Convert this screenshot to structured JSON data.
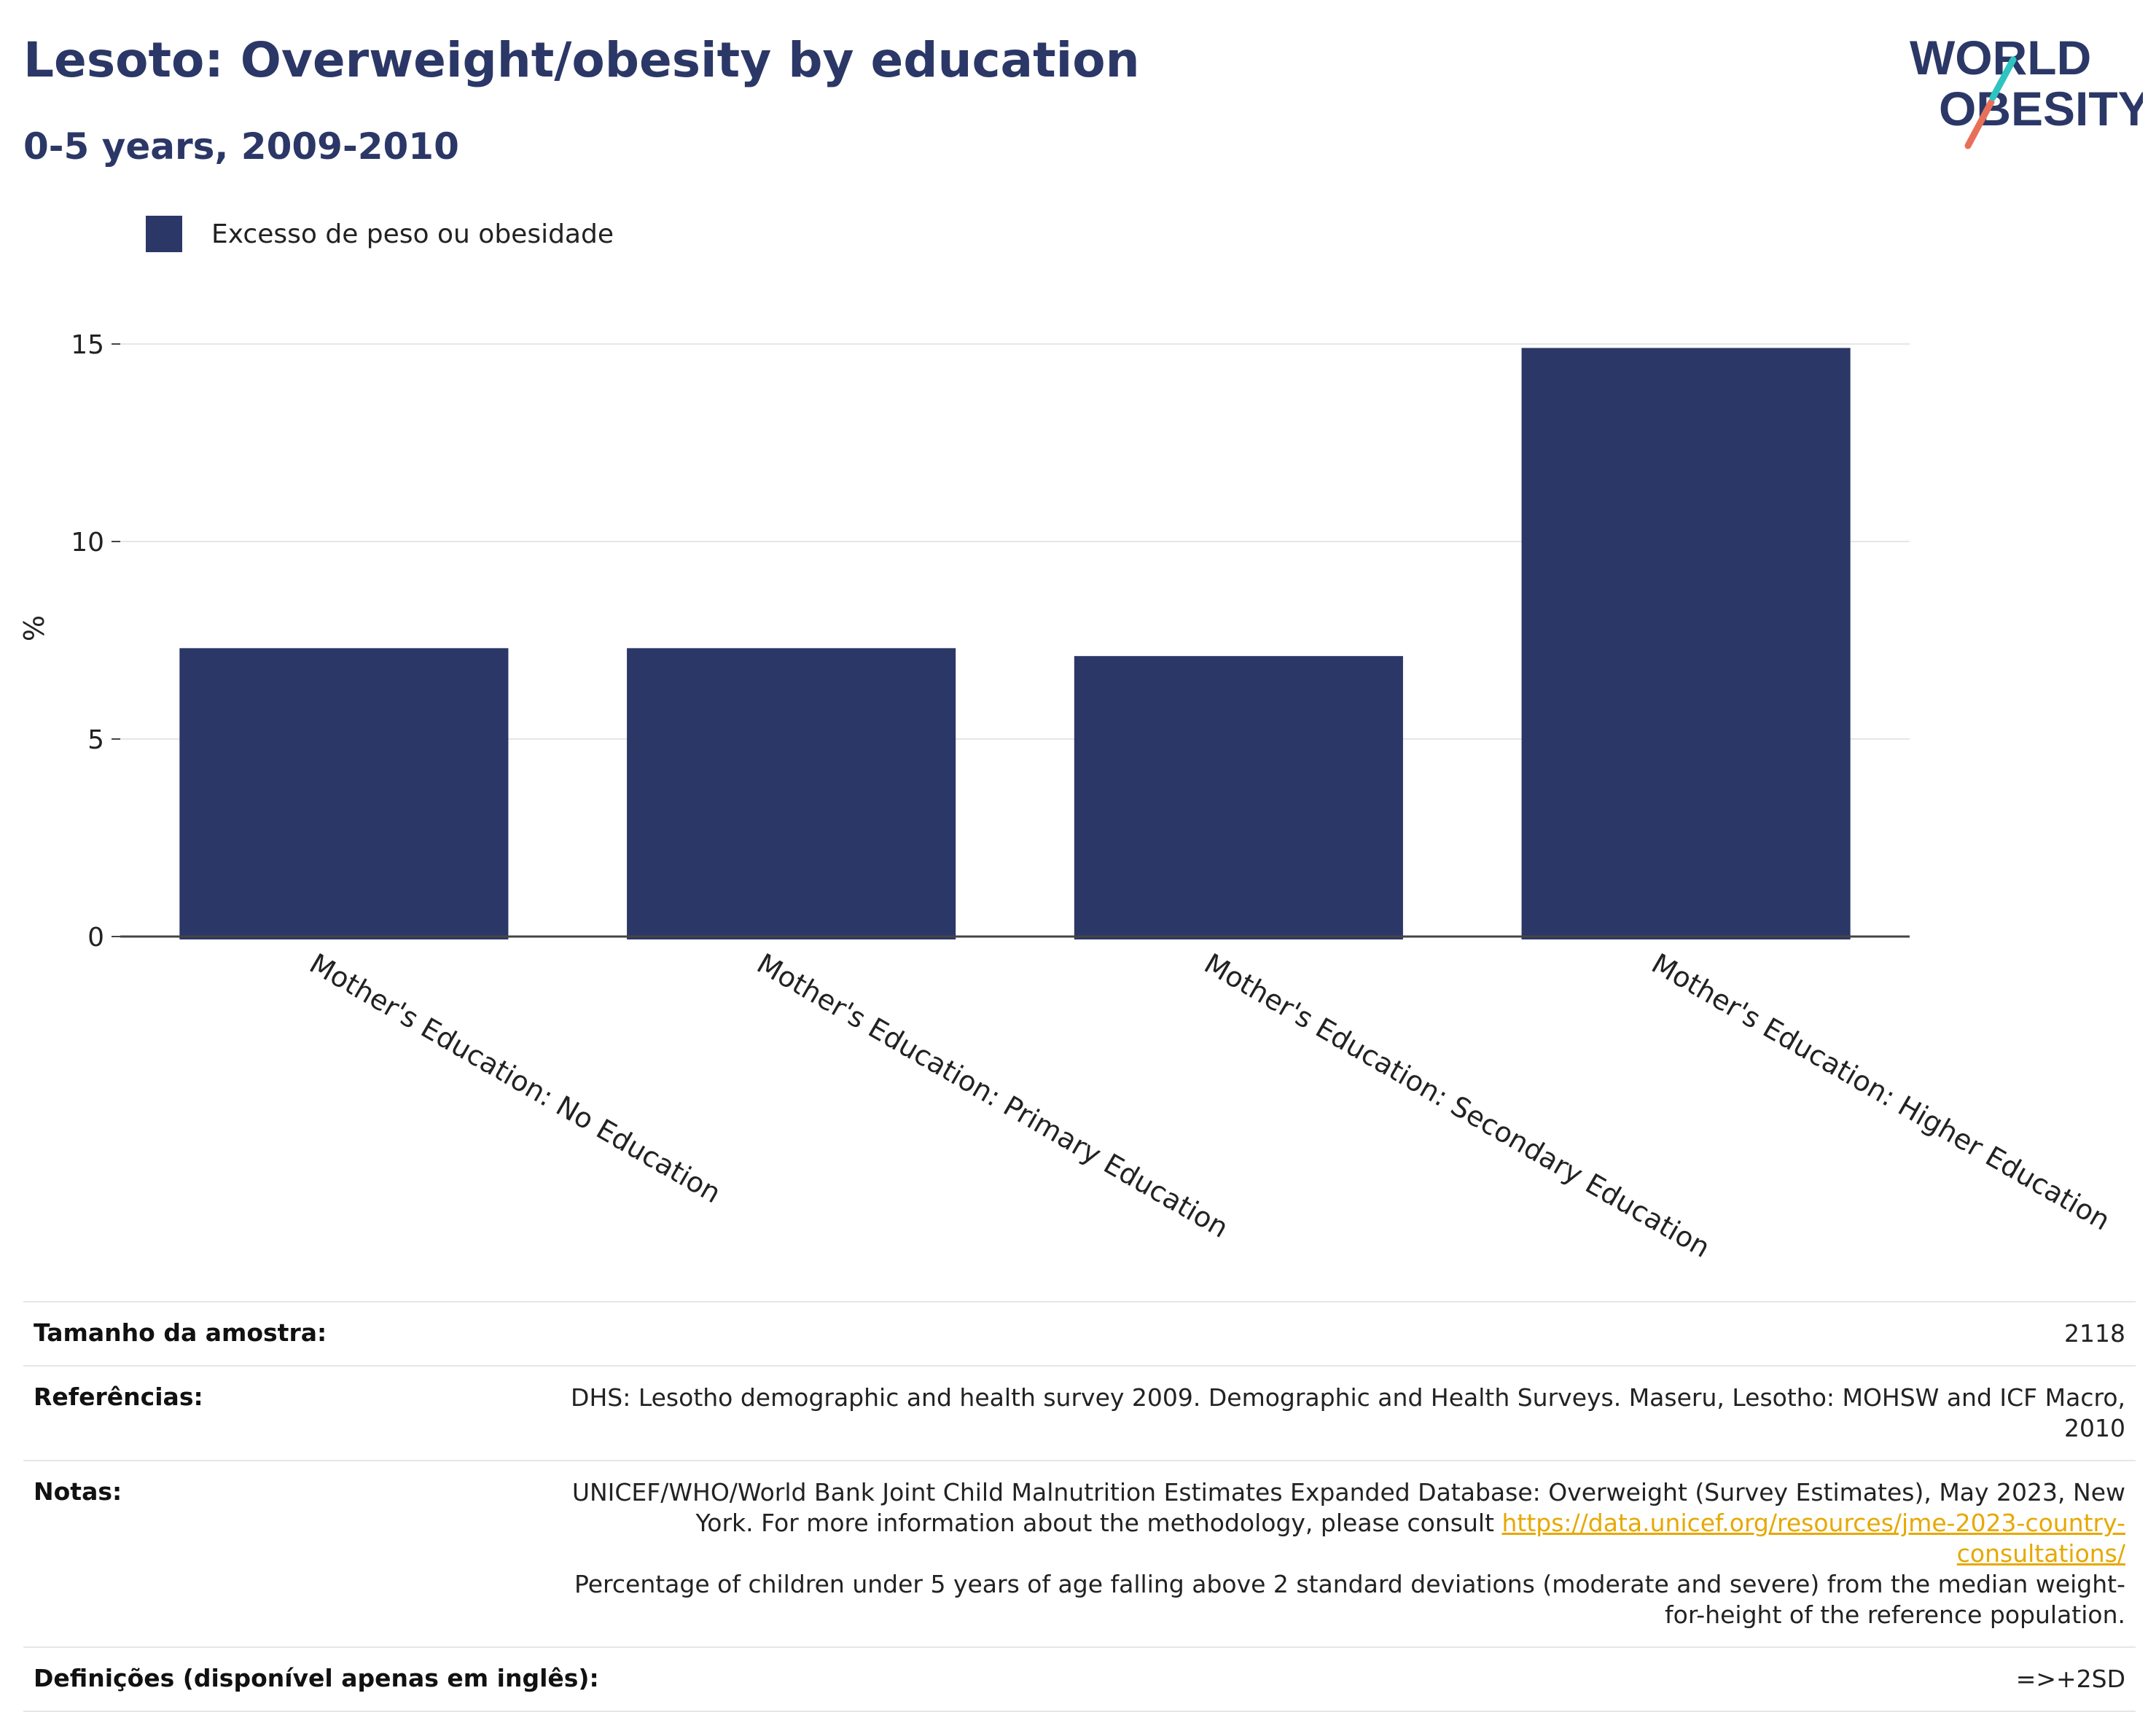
{
  "header": {
    "title": "Lesoto: Overweight/obesity by education",
    "subtitle": "0-5 years, 2009-2010",
    "logo_line1": "WORLD",
    "logo_line2": "OBESITY"
  },
  "legend": {
    "label": "Excesso de peso ou obesidade",
    "color": "#2b3766"
  },
  "chart_data": {
    "type": "bar",
    "title": "Lesoto: Overweight/obesity by education",
    "subtitle": "0-5 years, 2009-2010",
    "categories": [
      "Mother's Education: No Education",
      "Mother's Education: Primary Education",
      "Mother's Education: Secondary Education",
      "Mother's Education: Higher Education"
    ],
    "series": [
      {
        "name": "Excesso de peso ou obesidade",
        "values": [
          7.3,
          7.3,
          7.1,
          14.9
        ],
        "color": "#2b3766"
      }
    ],
    "xlabel": "",
    "ylabel": "%",
    "ylim": [
      0,
      15
    ],
    "yticks": [
      0,
      5,
      10,
      15
    ],
    "grid": true,
    "legend_position": "top-left"
  },
  "info": {
    "sample_label": "Tamanho da amostra:",
    "sample_value": "2118",
    "references_label": "Referências:",
    "references_value": "DHS: Lesotho demographic and health survey 2009. Demographic and Health Surveys. Maseru, Lesotho: MOHSW and ICF Macro, 2010",
    "notes_label": "Notas:",
    "notes_text1": "UNICEF/WHO/World Bank Joint Child Malnutrition Estimates Expanded Database: Overweight (Survey Estimates), May 2023, New York. For more information about the methodology, please consult",
    "notes_link": "https://data.unicef.org/resources/jme-2023-country-consultations/",
    "notes_text2": "Percentage of children under 5 years of age falling above 2 standard deviations (moderate and severe) from the median weight-for-height of the reference population.",
    "definitions_label": "Definições (disponível apenas em inglês):",
    "definitions_value": "=>+2SD"
  }
}
